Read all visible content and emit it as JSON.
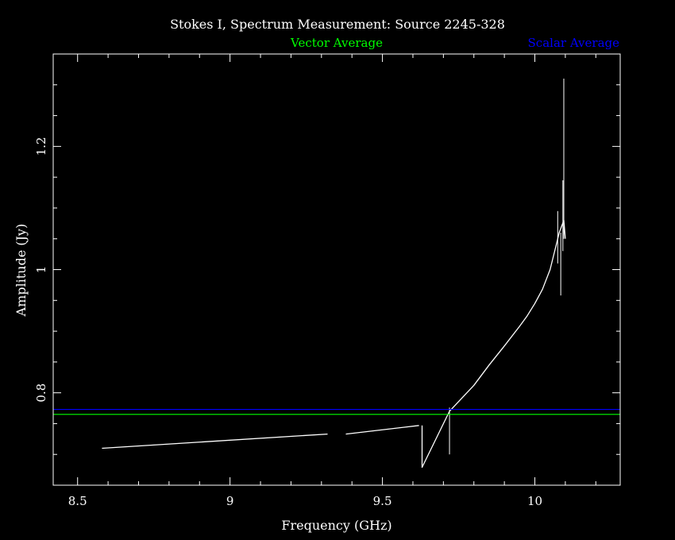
{
  "chart_data": {
    "type": "line",
    "title": "Stokes I, Spectrum Measurement: Source 2245-328",
    "xlabel": "Frequency (GHz)",
    "ylabel": "Amplitude (Jy)",
    "xlim": [
      8.42,
      10.28
    ],
    "ylim": [
      0.65,
      1.35
    ],
    "x_ticks": [
      8.5,
      9,
      9.5,
      10
    ],
    "x_tick_labels": [
      "8.5",
      "9",
      "9.5",
      "10"
    ],
    "x_minor_step": 0.1,
    "y_ticks": [
      0.8,
      1.0,
      1.2
    ],
    "y_tick_labels": [
      "0.8",
      "1",
      "1.2"
    ],
    "y_minor_step": 0.05,
    "grid": false,
    "legend": [
      {
        "name": "Vector Average",
        "color": "#00ff00",
        "position": "top-center"
      },
      {
        "name": "Scalar Average",
        "color": "#0000ff",
        "position": "top-right"
      }
    ],
    "series": [
      {
        "name": "Spectrum",
        "color": "#ffffff",
        "segments": [
          {
            "points": [
              [
                8.58,
                0.71
              ],
              [
                9.32,
                0.733
              ]
            ]
          },
          {
            "points": [
              [
                9.38,
                0.733
              ],
              [
                9.62,
                0.747
              ]
            ]
          },
          {
            "points": [
              [
                9.63,
                0.747
              ],
              [
                9.63,
                0.679
              ],
              [
                9.72,
                0.77
              ],
              [
                9.8,
                0.812
              ],
              [
                9.85,
                0.845
              ],
              [
                9.9,
                0.876
              ],
              [
                9.95,
                0.908
              ],
              [
                9.975,
                0.925
              ],
              [
                10.0,
                0.945
              ],
              [
                10.025,
                0.968
              ],
              [
                10.05,
                1.0
              ],
              [
                10.07,
                1.04
              ],
              [
                10.08,
                1.06
              ],
              [
                10.095,
                1.08
              ],
              [
                10.1,
                1.05
              ]
            ]
          }
        ],
        "spikes": [
          {
            "x": 9.72,
            "y_low": 0.7,
            "y_high": 0.776
          },
          {
            "x": 10.075,
            "y_low": 1.01,
            "y_high": 1.095
          },
          {
            "x": 10.085,
            "y_low": 0.958,
            "y_high": 1.06
          },
          {
            "x": 10.092,
            "y_low": 1.03,
            "y_high": 1.145
          },
          {
            "x": 10.095,
            "y_low": 1.05,
            "y_high": 1.31
          }
        ]
      },
      {
        "name": "Vector Average",
        "color": "#00ff00",
        "type": "hline",
        "y": 0.765
      },
      {
        "name": "Scalar Average",
        "color": "#0000ff",
        "type": "hline",
        "y": 0.773
      }
    ]
  }
}
